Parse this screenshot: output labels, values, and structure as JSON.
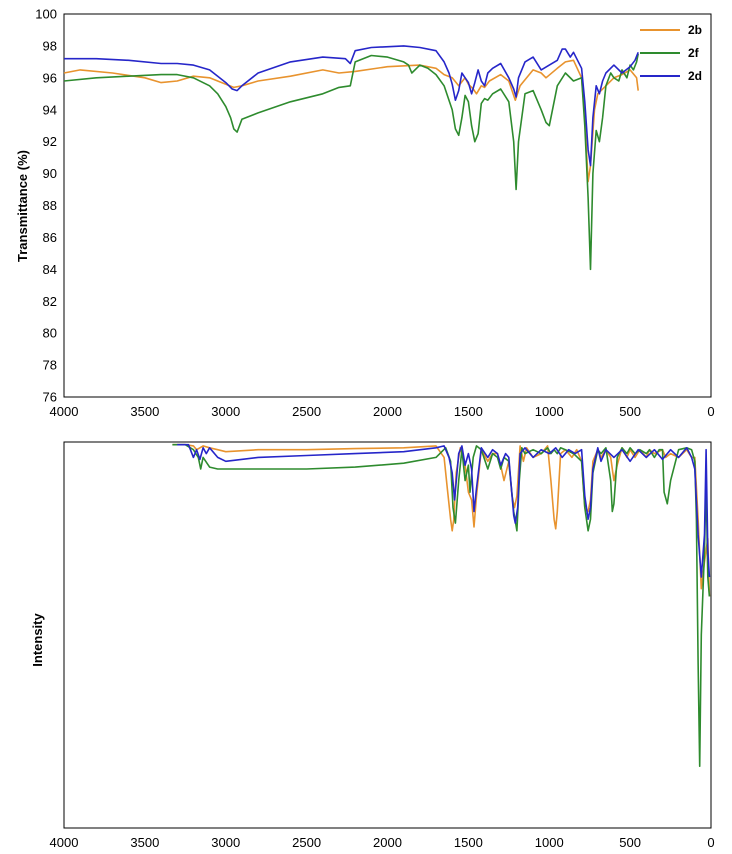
{
  "chart_data": [
    {
      "type": "line",
      "ylabel": "Transmittance (%)",
      "xlim": [
        4000,
        0
      ],
      "ylim": [
        76,
        100
      ],
      "xticks": [
        "4000",
        "3500",
        "3000",
        "2500",
        "2000",
        "1500",
        "1000",
        "500",
        "0"
      ],
      "yticks": [
        "76",
        "78",
        "80",
        "82",
        "84",
        "86",
        "88",
        "90",
        "92",
        "94",
        "96",
        "98",
        "100"
      ],
      "grid": false,
      "legend": "top-right",
      "series": [
        {
          "name": "2b",
          "color": "#E8932E",
          "x": [
            4000,
            3900,
            3700,
            3500,
            3400,
            3300,
            3200,
            3100,
            3000,
            2950,
            2900,
            2800,
            2600,
            2400,
            2300,
            2200,
            2000,
            1800,
            1700,
            1650,
            1600,
            1560,
            1520,
            1500,
            1470,
            1450,
            1420,
            1400,
            1370,
            1300,
            1250,
            1210,
            1180,
            1100,
            1050,
            1020,
            950,
            900,
            850,
            800,
            780,
            760,
            745,
            720,
            700,
            650,
            600,
            550,
            500,
            460,
            450
          ],
          "y": [
            96.3,
            96.5,
            96.3,
            96.0,
            95.7,
            95.8,
            96.1,
            96.0,
            95.6,
            95.4,
            95.5,
            95.8,
            96.1,
            96.5,
            96.3,
            96.4,
            96.7,
            96.8,
            96.6,
            96.2,
            96.0,
            95.5,
            96.0,
            95.6,
            95.3,
            95.0,
            95.5,
            95.4,
            95.8,
            96.2,
            95.8,
            94.6,
            95.5,
            96.5,
            96.3,
            96.0,
            96.6,
            97.0,
            97.1,
            96.0,
            93.5,
            89.5,
            90.5,
            94.0,
            95.0,
            95.5,
            96.0,
            96.2,
            96.5,
            96.0,
            95.2
          ]
        },
        {
          "name": "2f",
          "color": "#2E8B2E",
          "x": [
            4000,
            3800,
            3600,
            3400,
            3300,
            3200,
            3100,
            3050,
            3000,
            2970,
            2950,
            2930,
            2900,
            2800,
            2600,
            2400,
            2300,
            2230,
            2200,
            2100,
            2000,
            1900,
            1870,
            1850,
            1820,
            1800,
            1750,
            1700,
            1650,
            1600,
            1580,
            1560,
            1540,
            1520,
            1500,
            1480,
            1460,
            1440,
            1420,
            1400,
            1380,
            1350,
            1300,
            1250,
            1220,
            1205,
            1190,
            1150,
            1100,
            1050,
            1020,
            1000,
            950,
            900,
            850,
            800,
            780,
            760,
            745,
            730,
            710,
            690,
            670,
            650,
            620,
            600,
            570,
            550,
            520,
            500,
            480,
            460,
            450
          ],
          "y": [
            95.8,
            96.0,
            96.1,
            96.2,
            96.2,
            96.0,
            95.5,
            95.0,
            94.2,
            93.5,
            92.8,
            92.6,
            93.4,
            93.8,
            94.5,
            95.0,
            95.4,
            95.5,
            97.0,
            97.4,
            97.3,
            97.0,
            96.8,
            96.3,
            96.6,
            96.8,
            96.6,
            96.2,
            95.5,
            94.0,
            92.8,
            92.4,
            93.5,
            94.9,
            94.5,
            93.0,
            92.0,
            92.5,
            94.4,
            94.7,
            94.6,
            95.0,
            95.3,
            94.5,
            92.0,
            89.0,
            92.0,
            95.0,
            95.2,
            94.0,
            93.2,
            93.0,
            95.5,
            96.3,
            95.8,
            96.0,
            93.0,
            88.5,
            84.0,
            90.0,
            92.7,
            92.0,
            93.5,
            95.5,
            96.3,
            96.0,
            95.8,
            96.5,
            96.0,
            96.8,
            96.5,
            97.0,
            97.5
          ]
        },
        {
          "name": "2d",
          "color": "#2626C9",
          "x": [
            4000,
            3800,
            3600,
            3400,
            3300,
            3200,
            3100,
            3000,
            2960,
            2930,
            2900,
            2800,
            2600,
            2400,
            2260,
            2230,
            2200,
            2100,
            1900,
            1800,
            1700,
            1650,
            1620,
            1600,
            1580,
            1560,
            1540,
            1520,
            1500,
            1480,
            1460,
            1440,
            1420,
            1400,
            1380,
            1350,
            1300,
            1250,
            1220,
            1205,
            1190,
            1150,
            1100,
            1050,
            1000,
            950,
            920,
            900,
            870,
            850,
            800,
            780,
            760,
            745,
            730,
            710,
            690,
            670,
            650,
            600,
            550,
            500,
            470,
            450
          ],
          "y": [
            97.2,
            97.2,
            97.1,
            96.9,
            96.9,
            96.8,
            96.5,
            95.7,
            95.3,
            95.2,
            95.5,
            96.3,
            97.0,
            97.3,
            97.2,
            96.9,
            97.7,
            97.9,
            98.0,
            97.9,
            97.7,
            97.0,
            96.3,
            95.6,
            94.6,
            95.2,
            96.3,
            96.0,
            95.7,
            95.0,
            95.7,
            96.5,
            95.8,
            95.5,
            96.3,
            96.6,
            96.9,
            96.0,
            95.3,
            94.8,
            96.0,
            97.0,
            97.3,
            96.5,
            96.8,
            97.1,
            97.8,
            97.8,
            97.3,
            97.6,
            96.6,
            94.5,
            91.5,
            90.5,
            93.5,
            95.5,
            95.0,
            95.8,
            96.3,
            96.8,
            96.3,
            96.7,
            97.1,
            97.6
          ]
        }
      ]
    },
    {
      "type": "line",
      "ylabel": "Intensity",
      "xlim": [
        4000,
        0
      ],
      "ylim": [
        0,
        1
      ],
      "xticks": [
        "4000",
        "3500",
        "3000",
        "2500",
        "2000",
        "1500",
        "1000",
        "500",
        "0"
      ],
      "grid": false,
      "series": [
        {
          "color": "#E8932E",
          "x": [
            3330,
            3250,
            3200,
            3180,
            3160,
            3140,
            3100,
            3050,
            3000,
            2800,
            2500,
            2200,
            1900,
            1700,
            1650,
            1630,
            1610,
            1600,
            1590,
            1575,
            1550,
            1520,
            1500,
            1480,
            1465,
            1450,
            1420,
            1380,
            1350,
            1320,
            1300,
            1280,
            1250,
            1230,
            1215,
            1200,
            1180,
            1160,
            1140,
            1100,
            1050,
            1010,
            990,
            970,
            960,
            950,
            930,
            900,
            860,
            830,
            800,
            780,
            760,
            745,
            730,
            700,
            680,
            650,
            620,
            600,
            580,
            550,
            520,
            500,
            470,
            440,
            400,
            380,
            350,
            300,
            280,
            250,
            200,
            150,
            120,
            100,
            80,
            60,
            40,
            20,
            10
          ],
          "y": [
            0.993,
            0.993,
            0.99,
            0.98,
            0.985,
            0.99,
            0.985,
            0.98,
            0.975,
            0.98,
            0.98,
            0.983,
            0.985,
            0.99,
            0.96,
            0.88,
            0.8,
            0.77,
            0.8,
            0.92,
            0.985,
            0.94,
            0.87,
            0.85,
            0.78,
            0.86,
            0.98,
            0.95,
            0.97,
            0.97,
            0.94,
            0.9,
            0.95,
            0.86,
            0.83,
            0.86,
            0.99,
            0.95,
            0.985,
            0.96,
            0.97,
            0.99,
            0.9,
            0.8,
            0.775,
            0.82,
            0.97,
            0.98,
            0.96,
            0.98,
            0.95,
            0.83,
            0.82,
            0.85,
            0.95,
            0.98,
            0.96,
            0.98,
            0.96,
            0.9,
            0.94,
            0.985,
            0.96,
            0.98,
            0.96,
            0.98,
            0.96,
            0.98,
            0.97,
            0.98,
            0.96,
            0.97,
            0.96,
            0.98,
            0.96,
            0.96,
            0.8,
            0.62,
            0.69,
            0.75,
            0.6
          ]
        },
        {
          "color": "#2E8B2E",
          "x": [
            3330,
            3250,
            3200,
            3170,
            3155,
            3140,
            3100,
            3050,
            3000,
            2800,
            2500,
            2200,
            1900,
            1700,
            1640,
            1610,
            1595,
            1580,
            1560,
            1540,
            1520,
            1500,
            1490,
            1470,
            1450,
            1420,
            1380,
            1350,
            1320,
            1300,
            1280,
            1250,
            1220,
            1200,
            1185,
            1170,
            1150,
            1100,
            1050,
            1010,
            990,
            970,
            950,
            930,
            900,
            850,
            800,
            780,
            760,
            745,
            730,
            700,
            680,
            650,
            620,
            610,
            600,
            580,
            550,
            520,
            500,
            470,
            440,
            400,
            380,
            350,
            320,
            300,
            290,
            270,
            250,
            200,
            150,
            120,
            100,
            90,
            80,
            70,
            60,
            40,
            30,
            20,
            10
          ],
          "y": [
            0.993,
            0.993,
            0.98,
            0.96,
            0.93,
            0.96,
            0.935,
            0.93,
            0.93,
            0.93,
            0.93,
            0.935,
            0.945,
            0.96,
            0.985,
            0.95,
            0.83,
            0.79,
            0.9,
            0.98,
            0.9,
            0.94,
            0.87,
            0.96,
            0.99,
            0.98,
            0.93,
            0.97,
            0.96,
            0.93,
            0.96,
            0.95,
            0.82,
            0.77,
            0.9,
            0.985,
            0.97,
            0.98,
            0.97,
            0.985,
            0.97,
            0.98,
            0.97,
            0.985,
            0.98,
            0.97,
            0.95,
            0.83,
            0.77,
            0.8,
            0.92,
            0.98,
            0.97,
            0.985,
            0.9,
            0.82,
            0.84,
            0.96,
            0.985,
            0.97,
            0.985,
            0.97,
            0.98,
            0.97,
            0.98,
            0.96,
            0.98,
            0.98,
            0.87,
            0.84,
            0.9,
            0.98,
            0.985,
            0.98,
            0.95,
            0.8,
            0.43,
            0.16,
            0.5,
            0.72,
            0.9,
            0.65,
            0.6
          ]
        },
        {
          "color": "#2626C9",
          "x": [
            3300,
            3230,
            3200,
            3180,
            3160,
            3140,
            3120,
            3100,
            3050,
            3000,
            2800,
            2500,
            2200,
            1900,
            1700,
            1650,
            1620,
            1600,
            1585,
            1560,
            1540,
            1520,
            1500,
            1480,
            1465,
            1450,
            1420,
            1380,
            1350,
            1320,
            1300,
            1270,
            1250,
            1220,
            1210,
            1195,
            1180,
            1150,
            1100,
            1050,
            1000,
            960,
            920,
            880,
            840,
            800,
            780,
            760,
            745,
            730,
            700,
            680,
            650,
            600,
            550,
            500,
            450,
            400,
            350,
            300,
            250,
            200,
            150,
            120,
            100,
            80,
            60,
            40,
            30,
            20,
            10
          ],
          "y": [
            0.993,
            0.993,
            0.96,
            0.98,
            0.955,
            0.985,
            0.97,
            0.985,
            0.96,
            0.95,
            0.96,
            0.965,
            0.97,
            0.975,
            0.985,
            0.99,
            0.96,
            0.92,
            0.85,
            0.97,
            0.99,
            0.94,
            0.97,
            0.93,
            0.82,
            0.88,
            0.985,
            0.96,
            0.98,
            0.97,
            0.94,
            0.97,
            0.96,
            0.81,
            0.79,
            0.83,
            0.97,
            0.985,
            0.96,
            0.98,
            0.97,
            0.985,
            0.96,
            0.98,
            0.97,
            0.98,
            0.86,
            0.8,
            0.83,
            0.93,
            0.985,
            0.95,
            0.98,
            0.96,
            0.98,
            0.95,
            0.98,
            0.96,
            0.98,
            0.955,
            0.98,
            0.96,
            0.985,
            0.96,
            0.93,
            0.76,
            0.65,
            0.76,
            0.98,
            0.72,
            0.65
          ]
        }
      ]
    }
  ]
}
